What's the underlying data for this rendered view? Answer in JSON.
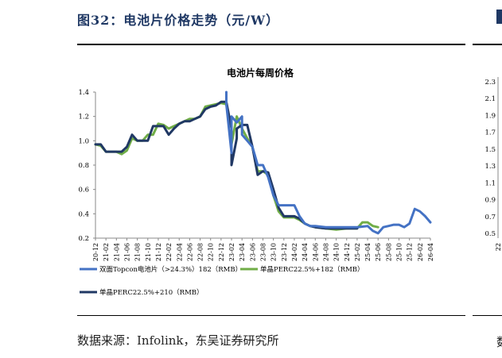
{
  "figure": {
    "heading": "图32：电池片价格走势（元/W）",
    "source": "数据来源：Infolink，东吴证券研究所"
  },
  "colors": {
    "heading": "#1f3864",
    "series": [
      "#4472c4",
      "#70ad47",
      "#203864"
    ]
  },
  "chart_data": {
    "type": "line",
    "title": "电池片每周价格",
    "xlabel": "",
    "ylabel": "",
    "ylim": [
      0.2,
      1.4
    ],
    "yticks": [
      "0.2",
      "0.4",
      "0.6",
      "0.8",
      "1.0",
      "1.2",
      "1.4"
    ],
    "x_ticks": [
      "20-12",
      "21-02",
      "21-04",
      "21-06",
      "21-08",
      "21-10",
      "21-12",
      "22-02",
      "22-04",
      "22-06",
      "22-08",
      "22-10",
      "22-12",
      "23-02",
      "23-04",
      "23-06",
      "23-08",
      "23-10",
      "23-12",
      "24-02",
      "24-04",
      "24-06",
      "24-08",
      "24-10",
      "24-12",
      "25-02",
      "25-04",
      "25-06",
      "25-08",
      "25-10",
      "25-12",
      "26-02",
      "26-04"
    ],
    "grid": false,
    "legend_position": "bottom",
    "series": [
      {
        "name": "双面Topcon电池片（>24.3%）182（RMB）",
        "x": [
          "23-01",
          "23-01",
          "23-02",
          "23-02",
          "23-03",
          "23-04",
          "23-04",
          "23-05",
          "23-06",
          "23-07",
          "23-08",
          "23-09",
          "23-10",
          "23-11",
          "23-12",
          "24-01",
          "24-02",
          "24-03",
          "24-04",
          "24-05",
          "24-06",
          "24-08",
          "24-10",
          "24-12",
          "25-02",
          "25-04",
          "25-05",
          "25-06",
          "25-07",
          "25-08",
          "25-09",
          "25-10",
          "25-11",
          "25-12",
          "26-01",
          "26-02",
          "26-03",
          "26-04"
        ],
        "y": [
          1.4,
          1.3,
          0.9,
          1.2,
          1.15,
          1.2,
          1.05,
          1.0,
          0.95,
          0.8,
          0.8,
          0.7,
          0.55,
          0.47,
          0.47,
          0.47,
          0.47,
          0.38,
          0.32,
          0.3,
          0.3,
          0.29,
          0.29,
          0.29,
          0.29,
          0.3,
          0.26,
          0.24,
          0.29,
          0.3,
          0.31,
          0.31,
          0.29,
          0.32,
          0.44,
          0.42,
          0.38,
          0.33
        ]
      },
      {
        "name": "单晶PERC22.5%+182（RMB）",
        "x": [
          "20-12",
          "21-01",
          "21-02",
          "21-04",
          "21-05",
          "21-06",
          "21-07",
          "21-08",
          "21-09",
          "21-10",
          "21-11",
          "21-12",
          "22-01",
          "22-02",
          "22-03",
          "22-04",
          "22-05",
          "22-06",
          "22-07",
          "22-08",
          "22-09",
          "22-10",
          "22-11",
          "22-12",
          "23-01",
          "23-02",
          "23-02",
          "23-03",
          "23-04",
          "23-05",
          "23-06",
          "23-07",
          "23-08",
          "23-09",
          "23-10",
          "23-11",
          "23-12",
          "24-01",
          "24-02",
          "24-03",
          "24-04",
          "24-05",
          "24-06",
          "24-08",
          "24-10",
          "24-12",
          "25-02",
          "25-03",
          "25-04",
          "25-05",
          "25-06"
        ],
        "y": [
          0.97,
          0.96,
          0.91,
          0.91,
          0.89,
          0.92,
          1.02,
          1.0,
          1.0,
          1.05,
          1.05,
          1.14,
          1.13,
          1.1,
          1.12,
          1.14,
          1.16,
          1.18,
          1.18,
          1.2,
          1.28,
          1.29,
          1.3,
          1.31,
          1.3,
          1.1,
          0.97,
          1.2,
          1.1,
          1.02,
          0.95,
          0.75,
          0.75,
          0.72,
          0.55,
          0.42,
          0.37,
          0.37,
          0.37,
          0.35,
          0.32,
          0.3,
          0.29,
          0.28,
          0.27,
          0.28,
          0.28,
          0.33,
          0.33,
          0.3,
          0.29
        ]
      },
      {
        "name": "单晶PERC22.5%+210（RMB）",
        "x": [
          "20-12",
          "21-01",
          "21-02",
          "21-04",
          "21-05",
          "21-06",
          "21-07",
          "21-08",
          "21-09",
          "21-10",
          "21-11",
          "21-12",
          "22-01",
          "22-02",
          "22-03",
          "22-04",
          "22-05",
          "22-06",
          "22-07",
          "22-08",
          "22-09",
          "22-10",
          "22-11",
          "22-12",
          "23-01",
          "23-02",
          "23-02",
          "23-03",
          "23-03",
          "23-04",
          "23-05",
          "23-06",
          "23-07",
          "23-08",
          "23-09",
          "23-10",
          "23-11",
          "23-12",
          "24-01",
          "24-02",
          "24-03",
          "24-04",
          "24-05",
          "24-06",
          "24-08",
          "24-10",
          "24-12",
          "25-02"
        ],
        "y": [
          0.97,
          0.97,
          0.91,
          0.91,
          0.91,
          0.95,
          1.05,
          1.0,
          1.0,
          1.0,
          1.12,
          1.12,
          1.12,
          1.05,
          1.1,
          1.14,
          1.16,
          1.16,
          1.18,
          1.2,
          1.26,
          1.28,
          1.29,
          1.32,
          1.32,
          1.1,
          0.8,
          1.02,
          1.1,
          1.13,
          1.13,
          0.95,
          0.72,
          0.75,
          0.74,
          0.6,
          0.45,
          0.38,
          0.38,
          0.38,
          0.36,
          0.32,
          0.3,
          0.29,
          0.28,
          0.28,
          0.28,
          0.28
        ]
      }
    ]
  },
  "right_chart_partial": {
    "yticks": [
      "2.3",
      "2.1",
      "1.9",
      "1.7",
      "1.5",
      "1.3",
      "1.1",
      "0.9",
      "0.7",
      "0.5"
    ],
    "x_first_label_fragment": "22"
  }
}
